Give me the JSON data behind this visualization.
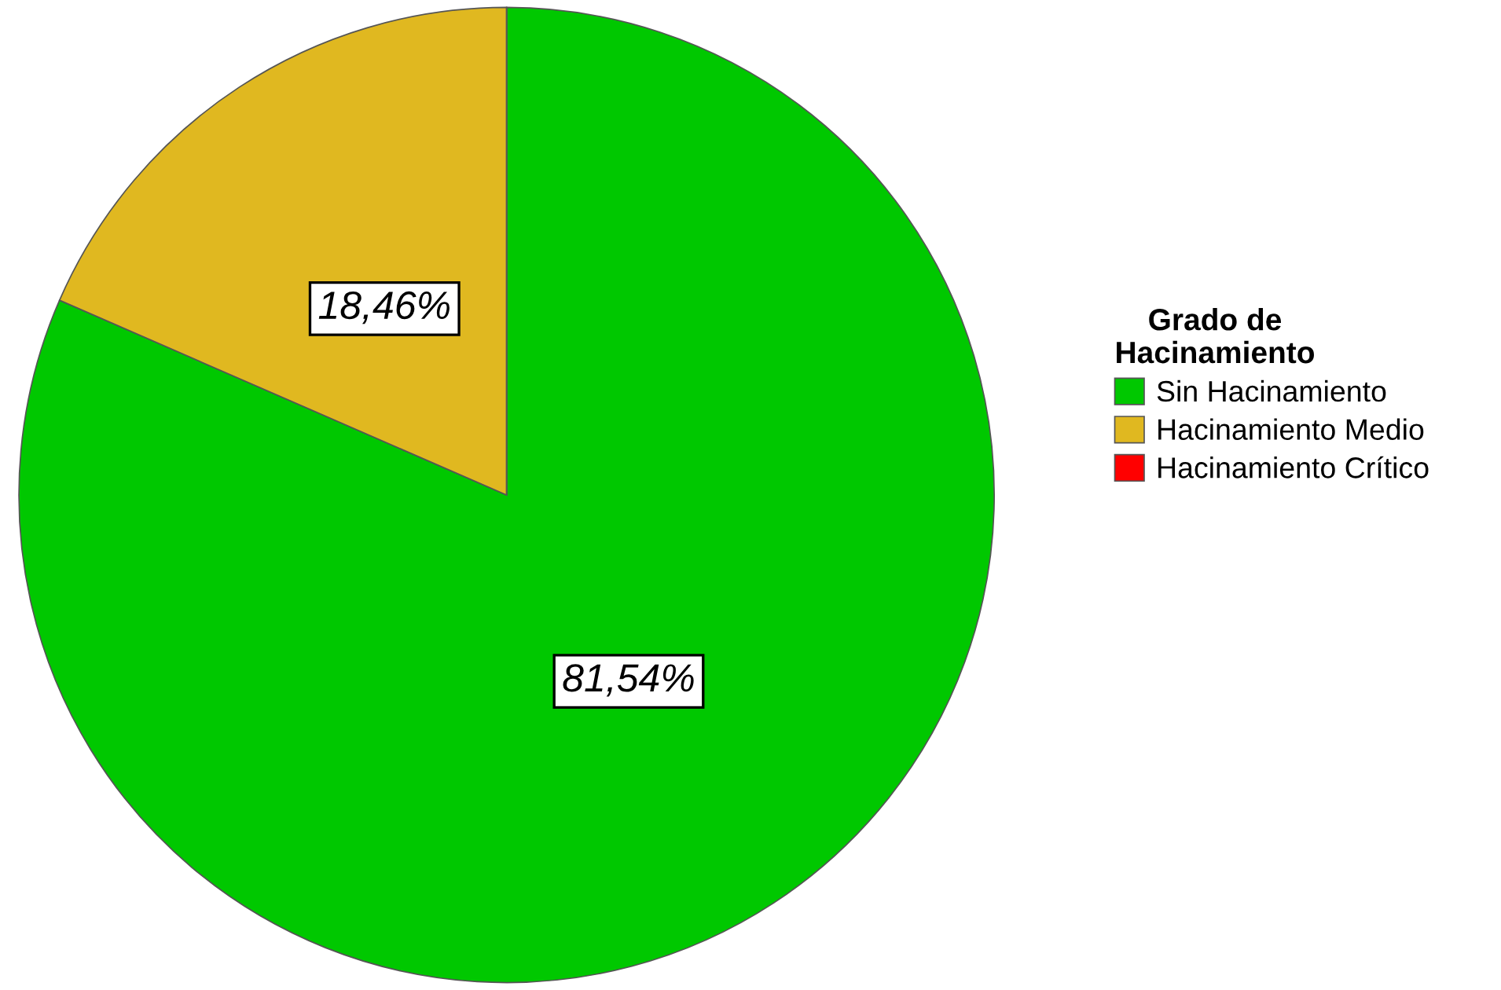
{
  "chart_data": {
    "type": "pie",
    "categories": [
      "Sin Hacinamiento",
      "Hacinamiento Medio",
      "Hacinamiento Crítico"
    ],
    "values": [
      81.54,
      18.46,
      0
    ],
    "colors": [
      "#00c800",
      "#e0b820",
      "#ff0000"
    ],
    "value_labels": [
      "81,54%",
      "18,46%",
      null
    ],
    "legend_title": "Grado de\nHacinamiento",
    "legend": "right"
  }
}
